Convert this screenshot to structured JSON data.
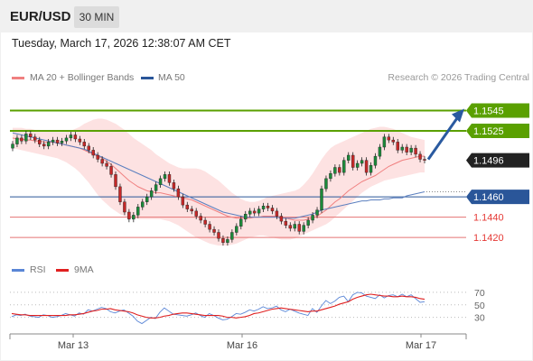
{
  "header": {
    "pair": "EUR/USD",
    "timeframe": "30 MIN"
  },
  "timestamp": "Tuesday, March 17, 2026 12:38:07 AM CET",
  "legend": {
    "ma20": {
      "label": "MA 20 + Bollinger Bands",
      "color": "#f08080"
    },
    "ma50": {
      "label": "MA 50",
      "color": "#2a5699"
    }
  },
  "credit": "Research © 2026 Trading Central",
  "rsi_legend": {
    "rsi": {
      "label": "RSI",
      "color": "#5a86d6"
    },
    "ma9": {
      "label": "9MA",
      "color": "#e02020"
    }
  },
  "colors": {
    "up": "#1b8a3a",
    "down": "#c62828",
    "resistance": "#5aa000",
    "support_blue": "#2a5699",
    "support_red": "#e57373",
    "band_fill": "#fde2e2"
  },
  "chart_data": [
    {
      "type": "candlestick",
      "ylim": [
        1.1405,
        1.1565
      ],
      "x_tick_labels": [
        "Mar 13",
        "Mar 16",
        "Mar 17"
      ],
      "levels": [
        {
          "label": "1.1545",
          "value": 1.1545,
          "kind": "resistance"
        },
        {
          "label": "1.1525",
          "value": 1.1525,
          "kind": "resistance"
        },
        {
          "label": "1.1460",
          "value": 1.146,
          "kind": "support_blue"
        },
        {
          "label": "1.1440",
          "value": 1.144,
          "kind": "support_red"
        },
        {
          "label": "1.1420",
          "value": 1.142,
          "kind": "support_red"
        }
      ],
      "last_price": {
        "label": "1.1496",
        "value": 1.1496
      },
      "forecast_arrow": {
        "from": 1.1496,
        "to": 1.1545
      },
      "close": [
        1.1512,
        1.1518,
        1.1515,
        1.1522,
        1.1519,
        1.1516,
        1.1512,
        1.151,
        1.1514,
        1.1516,
        1.1513,
        1.1515,
        1.1518,
        1.1521,
        1.1517,
        1.1514,
        1.151,
        1.1506,
        1.1501,
        1.1497,
        1.1493,
        1.149,
        1.1482,
        1.147,
        1.1455,
        1.1445,
        1.1438,
        1.1442,
        1.145,
        1.1455,
        1.146,
        1.1466,
        1.1472,
        1.1478,
        1.1482,
        1.1474,
        1.1468,
        1.146,
        1.1452,
        1.1448,
        1.1446,
        1.1441,
        1.1437,
        1.1433,
        1.1428,
        1.1425,
        1.1419,
        1.1415,
        1.1418,
        1.1425,
        1.1431,
        1.1438,
        1.1443,
        1.1446,
        1.1444,
        1.1448,
        1.1451,
        1.1449,
        1.1446,
        1.1441,
        1.1436,
        1.1432,
        1.1429,
        1.1433,
        1.1426,
        1.1432,
        1.1437,
        1.1442,
        1.1447,
        1.1468,
        1.1478,
        1.1483,
        1.1489,
        1.1484,
        1.1496,
        1.1501,
        1.1489,
        1.1493,
        1.1496,
        1.1484,
        1.1491,
        1.15,
        1.1509,
        1.1519,
        1.1516,
        1.1514,
        1.1506,
        1.1509,
        1.1504,
        1.1508,
        1.1502,
        1.1497,
        1.1496
      ],
      "bb_mid": [
        1.1518,
        1.1517,
        1.1517,
        1.1516,
        1.1516,
        1.1515,
        1.1515,
        1.1514,
        1.1514,
        1.1514,
        1.1513,
        1.1512,
        1.1511,
        1.151,
        1.1509,
        1.1508,
        1.1506,
        1.1504,
        1.1502,
        1.15,
        1.1498,
        1.1495,
        1.1492,
        1.1488,
        1.1484,
        1.148,
        1.1476,
        1.1473,
        1.147,
        1.1468,
        1.1466,
        1.1465,
        1.1464,
        1.1464,
        1.1463,
        1.1462,
        1.1461,
        1.146,
        1.1459,
        1.1458,
        1.1457,
        1.1455,
        1.1453,
        1.1451,
        1.1449,
        1.1447,
        1.1445,
        1.1443,
        1.1441,
        1.144,
        1.1439,
        1.1439,
        1.1439,
        1.1439,
        1.144,
        1.144,
        1.1441,
        1.1441,
        1.1441,
        1.1441,
        1.144,
        1.1439,
        1.1438,
        1.1437,
        1.1437,
        1.1437,
        1.1438,
        1.1439,
        1.1441,
        1.1444,
        1.1447,
        1.1451,
        1.1455,
        1.1458,
        1.1462,
        1.1466,
        1.1469,
        1.1472,
        1.1475,
        1.1477,
        1.1479,
        1.1481,
        1.1484,
        1.1487,
        1.149,
        1.1492,
        1.1494,
        1.1496,
        1.1497,
        1.1498,
        1.1499,
        1.15,
        1.15
      ],
      "bb_upper": [
        1.1528,
        1.1528,
        1.1528,
        1.1527,
        1.1527,
        1.1526,
        1.1526,
        1.1525,
        1.1525,
        1.1525,
        1.1524,
        1.1524,
        1.1524,
        1.1525,
        1.1527,
        1.1529,
        1.1532,
        1.1534,
        1.1536,
        1.1537,
        1.1537,
        1.1536,
        1.1534,
        1.1532,
        1.1529,
        1.1526,
        1.1522,
        1.1518,
        1.1515,
        1.1512,
        1.1509,
        1.1506,
        1.1502,
        1.1499,
        1.1496,
        1.1493,
        1.1491,
        1.1489,
        1.1488,
        1.1488,
        1.1488,
        1.1488,
        1.1487,
        1.1485,
        1.1482,
        1.1479,
        1.1476,
        1.1472,
        1.1468,
        1.1464,
        1.1461,
        1.1458,
        1.1456,
        1.1455,
        1.1455,
        1.1456,
        1.1458,
        1.146,
        1.1461,
        1.1462,
        1.1463,
        1.1464,
        1.1465,
        1.1466,
        1.1468,
        1.1472,
        1.1477,
        1.1483,
        1.149,
        1.1497,
        1.1503,
        1.1508,
        1.1511,
        1.1513,
        1.1515,
        1.1517,
        1.1519,
        1.1521,
        1.1523,
        1.1525,
        1.1527,
        1.1528,
        1.1529,
        1.1529,
        1.1528,
        1.1527,
        1.1525,
        1.1523,
        1.1521,
        1.1519,
        1.1518,
        1.1517,
        1.1516
      ],
      "bb_lower": [
        1.1508,
        1.1507,
        1.1506,
        1.1505,
        1.1504,
        1.1503,
        1.1502,
        1.1501,
        1.15,
        1.1499,
        1.1498,
        1.1496,
        1.1494,
        1.1491,
        1.1488,
        1.1484,
        1.1479,
        1.1474,
        1.1468,
        1.1462,
        1.1457,
        1.1453,
        1.1449,
        1.1446,
        1.1443,
        1.1441,
        1.144,
        1.1439,
        1.1438,
        1.1438,
        1.1438,
        1.1438,
        1.1438,
        1.1438,
        1.1437,
        1.1436,
        1.1434,
        1.1432,
        1.1429,
        1.1426,
        1.1423,
        1.142,
        1.1418,
        1.1416,
        1.1414,
        1.1413,
        1.1412,
        1.1412,
        1.1412,
        1.1413,
        1.1414,
        1.1416,
        1.1418,
        1.142,
        1.1421,
        1.1422,
        1.1422,
        1.1421,
        1.142,
        1.1419,
        1.1418,
        1.1418,
        1.1418,
        1.1419,
        1.1421,
        1.1423,
        1.1425,
        1.1427,
        1.1429,
        1.1431,
        1.1433,
        1.1436,
        1.144,
        1.1444,
        1.1448,
        1.1452,
        1.1456,
        1.146,
        1.1464,
        1.1467,
        1.147,
        1.1472,
        1.1474,
        1.1476,
        1.1477,
        1.1478,
        1.1479,
        1.148,
        1.1481,
        1.1482,
        1.1483,
        1.1484,
        1.1484
      ],
      "ma50": [
        1.1523,
        1.1522,
        1.1521,
        1.152,
        1.1519,
        1.1518,
        1.1517,
        1.1516,
        1.1515,
        1.1514,
        1.1513,
        1.1512,
        1.1511,
        1.151,
        1.1509,
        1.1508,
        1.1507,
        1.1505,
        1.1503,
        1.1501,
        1.1499,
        1.1497,
        1.1495,
        1.1493,
        1.1491,
        1.1489,
        1.1487,
        1.1485,
        1.1483,
        1.1481,
        1.1479,
        1.1477,
        1.1475,
        1.1473,
        1.1471,
        1.1469,
        1.1467,
        1.1465,
        1.1463,
        1.1461,
        1.1459,
        1.1457,
        1.1455,
        1.1453,
        1.1451,
        1.1449,
        1.1447,
        1.1445,
        1.1444,
        1.1443,
        1.1442,
        1.1441,
        1.144,
        1.144,
        1.144,
        1.144,
        1.144,
        1.144,
        1.144,
        1.144,
        1.1439,
        1.1439,
        1.1439,
        1.1439,
        1.144,
        1.1441,
        1.1442,
        1.1443,
        1.1445,
        1.1447,
        1.1448,
        1.1449,
        1.145,
        1.1451,
        1.1452,
        1.1453,
        1.1454,
        1.1455,
        1.1456,
        1.1456,
        1.1457,
        1.1457,
        1.1457,
        1.1458,
        1.1458,
        1.1459,
        1.1459,
        1.1459,
        1.1461,
        1.1462,
        1.1463,
        1.1464,
        1.1465
      ]
    },
    {
      "type": "line",
      "title": "RSI",
      "ylim": [
        15,
        80
      ],
      "y_tick_labels": [
        "70",
        "50",
        "30"
      ],
      "y_ticks": [
        70,
        50,
        30
      ],
      "series": [
        {
          "name": "RSI",
          "values": [
            31,
            34,
            33,
            35,
            32,
            31,
            30,
            34,
            33,
            30,
            31,
            33,
            36,
            34,
            32,
            37,
            35,
            42,
            40,
            43,
            46,
            44,
            39,
            37,
            40,
            42,
            37,
            32,
            24,
            20,
            25,
            30,
            28,
            38,
            45,
            40,
            35,
            34,
            33,
            32,
            34,
            37,
            33,
            30,
            36,
            33,
            29,
            26,
            27,
            31,
            36,
            35,
            38,
            42,
            40,
            43,
            47,
            44,
            45,
            48,
            42,
            39,
            43,
            40,
            37,
            35,
            33,
            44,
            38,
            48,
            57,
            52,
            56,
            62,
            64,
            55,
            66,
            70,
            69,
            64,
            62,
            60,
            66,
            61,
            65,
            66,
            63,
            67,
            63,
            66,
            60,
            54,
            55
          ]
        },
        {
          "name": "9MA",
          "values": [
            36,
            35,
            34,
            34,
            33,
            33,
            33,
            33,
            33,
            33,
            33,
            33,
            33,
            34,
            34,
            35,
            36,
            38,
            40,
            41,
            43,
            43,
            44,
            42,
            41,
            40,
            39,
            37,
            34,
            32,
            30,
            29,
            29,
            30,
            32,
            33,
            35,
            36,
            37,
            37,
            36,
            35,
            34,
            33,
            33,
            33,
            33,
            32,
            30,
            30,
            29,
            30,
            31,
            33,
            36,
            37,
            39,
            41,
            43,
            44,
            45,
            44,
            43,
            42,
            41,
            40,
            39,
            40,
            40,
            42,
            44,
            46,
            48,
            51,
            53,
            55,
            59,
            62,
            64,
            66,
            67,
            66,
            65,
            64,
            64,
            63,
            63,
            64,
            63,
            63,
            62,
            60,
            59
          ]
        }
      ]
    }
  ]
}
